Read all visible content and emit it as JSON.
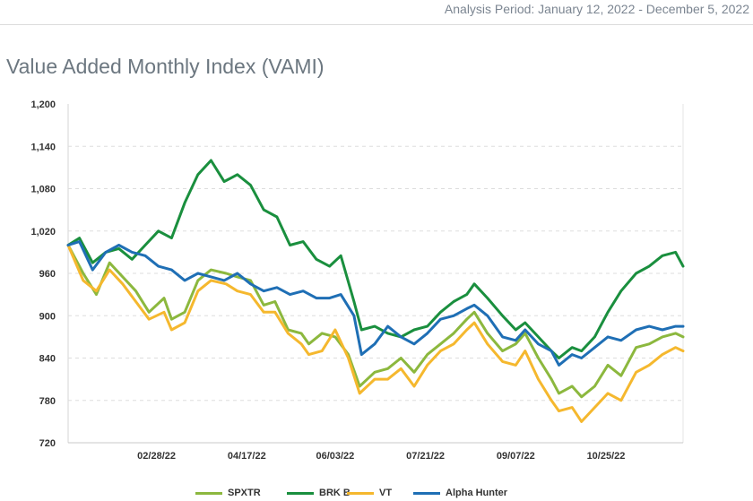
{
  "header": {
    "period": "Analysis Period: January 12, 2022 - December 5, 2022"
  },
  "chart_title": "Value Added Monthly Index (VAMI)",
  "chart_data": {
    "type": "line",
    "title": "Value Added Monthly Index (VAMI)",
    "xlabel": "",
    "ylabel": "",
    "ylim": [
      720,
      1200
    ],
    "yticks": [
      "1,200",
      "1,140",
      "1,080",
      "1,020",
      "960",
      "900",
      "840",
      "780",
      "720"
    ],
    "x_range": [
      "2022-01-12",
      "2022-12-05"
    ],
    "xticks": [
      {
        "label": "02/28/22",
        "date": "2022-02-28"
      },
      {
        "label": "04/17/22",
        "date": "2022-04-17"
      },
      {
        "label": "06/03/22",
        "date": "2022-06-03"
      },
      {
        "label": "07/21/22",
        "date": "2022-07-21"
      },
      {
        "label": "09/07/22",
        "date": "2022-09-07"
      },
      {
        "label": "10/25/22",
        "date": "2022-10-25"
      }
    ],
    "grid": true,
    "legend": "bottom",
    "series": [
      {
        "name": "SPXTR",
        "color": "#8cb83e",
        "points": [
          [
            "2022-01-12",
            1000
          ],
          [
            "2022-01-20",
            960
          ],
          [
            "2022-01-27",
            930
          ],
          [
            "2022-02-03",
            975
          ],
          [
            "2022-02-10",
            955
          ],
          [
            "2022-02-17",
            935
          ],
          [
            "2022-02-24",
            905
          ],
          [
            "2022-03-04",
            925
          ],
          [
            "2022-03-08",
            895
          ],
          [
            "2022-03-15",
            905
          ],
          [
            "2022-03-22",
            950
          ],
          [
            "2022-03-29",
            965
          ],
          [
            "2022-04-06",
            960
          ],
          [
            "2022-04-12",
            955
          ],
          [
            "2022-04-19",
            950
          ],
          [
            "2022-04-26",
            915
          ],
          [
            "2022-05-02",
            920
          ],
          [
            "2022-05-09",
            880
          ],
          [
            "2022-05-16",
            875
          ],
          [
            "2022-05-20",
            860
          ],
          [
            "2022-05-27",
            875
          ],
          [
            "2022-06-03",
            870
          ],
          [
            "2022-06-10",
            845
          ],
          [
            "2022-06-16",
            800
          ],
          [
            "2022-06-24",
            820
          ],
          [
            "2022-07-01",
            825
          ],
          [
            "2022-07-08",
            840
          ],
          [
            "2022-07-15",
            820
          ],
          [
            "2022-07-22",
            845
          ],
          [
            "2022-07-29",
            860
          ],
          [
            "2022-08-05",
            875
          ],
          [
            "2022-08-12",
            895
          ],
          [
            "2022-08-16",
            905
          ],
          [
            "2022-08-23",
            875
          ],
          [
            "2022-08-31",
            850
          ],
          [
            "2022-09-07",
            860
          ],
          [
            "2022-09-12",
            875
          ],
          [
            "2022-09-19",
            840
          ],
          [
            "2022-09-26",
            810
          ],
          [
            "2022-09-30",
            790
          ],
          [
            "2022-10-07",
            800
          ],
          [
            "2022-10-12",
            785
          ],
          [
            "2022-10-19",
            800
          ],
          [
            "2022-10-26",
            830
          ],
          [
            "2022-11-02",
            815
          ],
          [
            "2022-11-10",
            855
          ],
          [
            "2022-11-17",
            860
          ],
          [
            "2022-11-24",
            870
          ],
          [
            "2022-12-01",
            875
          ],
          [
            "2022-12-05",
            870
          ]
        ]
      },
      {
        "name": "BRK B",
        "color": "#1a8f3e",
        "points": [
          [
            "2022-01-12",
            1000
          ],
          [
            "2022-01-18",
            1010
          ],
          [
            "2022-01-25",
            975
          ],
          [
            "2022-02-01",
            990
          ],
          [
            "2022-02-08",
            995
          ],
          [
            "2022-02-15",
            980
          ],
          [
            "2022-02-22",
            1000
          ],
          [
            "2022-03-01",
            1020
          ],
          [
            "2022-03-08",
            1010
          ],
          [
            "2022-03-15",
            1060
          ],
          [
            "2022-03-22",
            1100
          ],
          [
            "2022-03-29",
            1120
          ],
          [
            "2022-04-05",
            1090
          ],
          [
            "2022-04-12",
            1100
          ],
          [
            "2022-04-19",
            1085
          ],
          [
            "2022-04-26",
            1050
          ],
          [
            "2022-05-03",
            1040
          ],
          [
            "2022-05-10",
            1000
          ],
          [
            "2022-05-17",
            1005
          ],
          [
            "2022-05-24",
            980
          ],
          [
            "2022-05-31",
            970
          ],
          [
            "2022-06-06",
            985
          ],
          [
            "2022-06-13",
            920
          ],
          [
            "2022-06-17",
            880
          ],
          [
            "2022-06-24",
            885
          ],
          [
            "2022-07-01",
            875
          ],
          [
            "2022-07-08",
            870
          ],
          [
            "2022-07-15",
            880
          ],
          [
            "2022-07-22",
            885
          ],
          [
            "2022-07-29",
            905
          ],
          [
            "2022-08-05",
            920
          ],
          [
            "2022-08-12",
            930
          ],
          [
            "2022-08-16",
            945
          ],
          [
            "2022-08-23",
            925
          ],
          [
            "2022-08-31",
            900
          ],
          [
            "2022-09-07",
            880
          ],
          [
            "2022-09-12",
            890
          ],
          [
            "2022-09-19",
            870
          ],
          [
            "2022-09-26",
            850
          ],
          [
            "2022-09-30",
            840
          ],
          [
            "2022-10-07",
            855
          ],
          [
            "2022-10-12",
            850
          ],
          [
            "2022-10-19",
            870
          ],
          [
            "2022-10-26",
            905
          ],
          [
            "2022-11-02",
            935
          ],
          [
            "2022-11-10",
            960
          ],
          [
            "2022-11-17",
            970
          ],
          [
            "2022-11-24",
            985
          ],
          [
            "2022-12-01",
            990
          ],
          [
            "2022-12-05",
            970
          ]
        ]
      },
      {
        "name": "VT",
        "color": "#f5b82e",
        "points": [
          [
            "2022-01-12",
            1000
          ],
          [
            "2022-01-20",
            950
          ],
          [
            "2022-01-27",
            935
          ],
          [
            "2022-02-03",
            965
          ],
          [
            "2022-02-10",
            945
          ],
          [
            "2022-02-17",
            920
          ],
          [
            "2022-02-24",
            895
          ],
          [
            "2022-03-04",
            905
          ],
          [
            "2022-03-08",
            880
          ],
          [
            "2022-03-15",
            890
          ],
          [
            "2022-03-22",
            935
          ],
          [
            "2022-03-29",
            950
          ],
          [
            "2022-04-06",
            945
          ],
          [
            "2022-04-12",
            935
          ],
          [
            "2022-04-19",
            930
          ],
          [
            "2022-04-26",
            905
          ],
          [
            "2022-05-02",
            905
          ],
          [
            "2022-05-09",
            875
          ],
          [
            "2022-05-16",
            860
          ],
          [
            "2022-05-20",
            845
          ],
          [
            "2022-05-27",
            850
          ],
          [
            "2022-06-03",
            880
          ],
          [
            "2022-06-10",
            840
          ],
          [
            "2022-06-16",
            790
          ],
          [
            "2022-06-24",
            810
          ],
          [
            "2022-07-01",
            810
          ],
          [
            "2022-07-08",
            825
          ],
          [
            "2022-07-15",
            800
          ],
          [
            "2022-07-22",
            830
          ],
          [
            "2022-07-29",
            850
          ],
          [
            "2022-08-05",
            860
          ],
          [
            "2022-08-12",
            880
          ],
          [
            "2022-08-16",
            890
          ],
          [
            "2022-08-23",
            860
          ],
          [
            "2022-08-31",
            835
          ],
          [
            "2022-09-07",
            830
          ],
          [
            "2022-09-12",
            850
          ],
          [
            "2022-09-19",
            810
          ],
          [
            "2022-09-26",
            780
          ],
          [
            "2022-09-30",
            765
          ],
          [
            "2022-10-07",
            770
          ],
          [
            "2022-10-12",
            750
          ],
          [
            "2022-10-19",
            770
          ],
          [
            "2022-10-26",
            790
          ],
          [
            "2022-11-02",
            780
          ],
          [
            "2022-11-10",
            820
          ],
          [
            "2022-11-17",
            830
          ],
          [
            "2022-11-24",
            845
          ],
          [
            "2022-12-01",
            855
          ],
          [
            "2022-12-05",
            850
          ]
        ]
      },
      {
        "name": "Alpha Hunter",
        "color": "#1f6fb5",
        "points": [
          [
            "2022-01-12",
            1000
          ],
          [
            "2022-01-18",
            1005
          ],
          [
            "2022-01-25",
            965
          ],
          [
            "2022-02-01",
            990
          ],
          [
            "2022-02-08",
            1000
          ],
          [
            "2022-02-15",
            990
          ],
          [
            "2022-02-22",
            985
          ],
          [
            "2022-03-01",
            970
          ],
          [
            "2022-03-08",
            965
          ],
          [
            "2022-03-15",
            950
          ],
          [
            "2022-03-22",
            960
          ],
          [
            "2022-03-29",
            955
          ],
          [
            "2022-04-05",
            950
          ],
          [
            "2022-04-12",
            960
          ],
          [
            "2022-04-19",
            945
          ],
          [
            "2022-04-26",
            935
          ],
          [
            "2022-05-03",
            940
          ],
          [
            "2022-05-10",
            930
          ],
          [
            "2022-05-17",
            935
          ],
          [
            "2022-05-24",
            925
          ],
          [
            "2022-05-31",
            925
          ],
          [
            "2022-06-06",
            930
          ],
          [
            "2022-06-13",
            900
          ],
          [
            "2022-06-17",
            845
          ],
          [
            "2022-06-24",
            860
          ],
          [
            "2022-07-01",
            885
          ],
          [
            "2022-07-08",
            870
          ],
          [
            "2022-07-15",
            860
          ],
          [
            "2022-07-22",
            875
          ],
          [
            "2022-07-29",
            895
          ],
          [
            "2022-08-05",
            900
          ],
          [
            "2022-08-12",
            910
          ],
          [
            "2022-08-16",
            915
          ],
          [
            "2022-08-23",
            900
          ],
          [
            "2022-08-31",
            870
          ],
          [
            "2022-09-07",
            865
          ],
          [
            "2022-09-12",
            880
          ],
          [
            "2022-09-19",
            860
          ],
          [
            "2022-09-26",
            850
          ],
          [
            "2022-09-30",
            830
          ],
          [
            "2022-10-07",
            845
          ],
          [
            "2022-10-12",
            840
          ],
          [
            "2022-10-19",
            855
          ],
          [
            "2022-10-26",
            870
          ],
          [
            "2022-11-02",
            865
          ],
          [
            "2022-11-10",
            880
          ],
          [
            "2022-11-17",
            885
          ],
          [
            "2022-11-24",
            880
          ],
          [
            "2022-12-01",
            885
          ],
          [
            "2022-12-05",
            885
          ]
        ]
      }
    ]
  }
}
